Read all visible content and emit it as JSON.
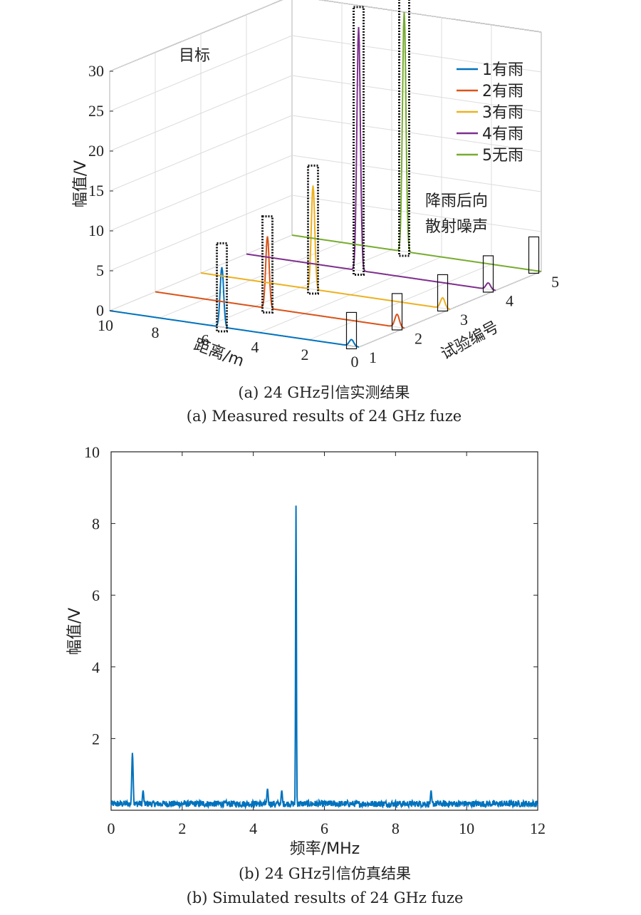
{
  "chart_data": [
    {
      "type": "line",
      "subtype": "3d-waterfall",
      "caption_cn": "(a) 24 GHz引信实测结果",
      "caption_en": "(a) Measured results of 24 GHz fuze",
      "zlabel": "幅值/V",
      "xlabel": "距离/m",
      "ylabel": "试验编号",
      "zticks": [
        "0",
        "5",
        "10",
        "15",
        "20",
        "25",
        "30"
      ],
      "xticks": [
        "10",
        "8",
        "6",
        "4",
        "2",
        "0"
      ],
      "yticks": [
        "1",
        "2",
        "3",
        "4",
        "5"
      ],
      "zlim": [
        0,
        30
      ],
      "xlim": [
        0,
        10
      ],
      "ylim": [
        1,
        5
      ],
      "annotations": {
        "target": "目标",
        "noise_line1": "降雨后向",
        "noise_line2": "散射噪声"
      },
      "legend_position": "top-right",
      "series": [
        {
          "name": "1有雨",
          "color": "#0072BD",
          "trial": 1,
          "target_distance": 5.5,
          "target_peak": 7.5,
          "noise_distance": 0.3,
          "noise_peak": 0.8
        },
        {
          "name": "2有雨",
          "color": "#D95319",
          "trial": 2,
          "target_distance": 5.5,
          "target_peak": 9.0,
          "noise_distance": 0.3,
          "noise_peak": 1.6
        },
        {
          "name": "3有雨",
          "color": "#EDB120",
          "trial": 3,
          "target_distance": 5.5,
          "target_peak": 13.0,
          "noise_distance": 0.3,
          "noise_peak": 1.3
        },
        {
          "name": "4有雨",
          "color": "#7E2F8E",
          "trial": 4,
          "target_distance": 5.5,
          "target_peak": 30.5,
          "noise_distance": 0.3,
          "noise_peak": 0.8
        },
        {
          "name": "5无雨",
          "color": "#77AC30",
          "trial": 5,
          "target_distance": 5.5,
          "target_peak": 30.0,
          "noise_distance": 0.3,
          "noise_peak": 0.0
        }
      ]
    },
    {
      "type": "line",
      "caption_cn": "(b) 24 GHz引信仿真结果",
      "caption_en": "(b) Simulated results of 24 GHz fuze",
      "xlabel": "频率/MHz",
      "ylabel": "幅值/V",
      "xlim": [
        0,
        12
      ],
      "ylim": [
        0,
        10
      ],
      "xticks": [
        "0",
        "2",
        "4",
        "6",
        "8",
        "10",
        "12"
      ],
      "yticks": [
        "2",
        "4",
        "6",
        "8",
        "10"
      ],
      "color": "#0072BD",
      "peaks": [
        {
          "x": 0.6,
          "y": 1.6
        },
        {
          "x": 5.2,
          "y": 8.5
        },
        {
          "x": 0.9,
          "y": 0.55
        },
        {
          "x": 4.4,
          "y": 0.6
        },
        {
          "x": 4.8,
          "y": 0.55
        },
        {
          "x": 9.0,
          "y": 0.55
        }
      ],
      "noise_floor": 0.2
    }
  ]
}
